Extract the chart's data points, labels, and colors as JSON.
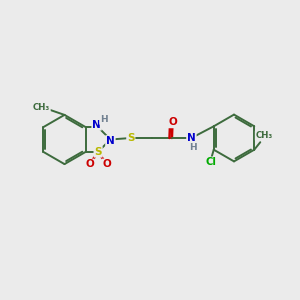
{
  "bg_color": "#ebebeb",
  "bond_color": "#3d6b3d",
  "atom_colors": {
    "S": "#b8b800",
    "N": "#0000cc",
    "O": "#cc0000",
    "Cl": "#00aa00",
    "H": "#708090",
    "default": "#3d6b3d"
  },
  "figsize": [
    3.0,
    3.0
  ],
  "dpi": 100
}
